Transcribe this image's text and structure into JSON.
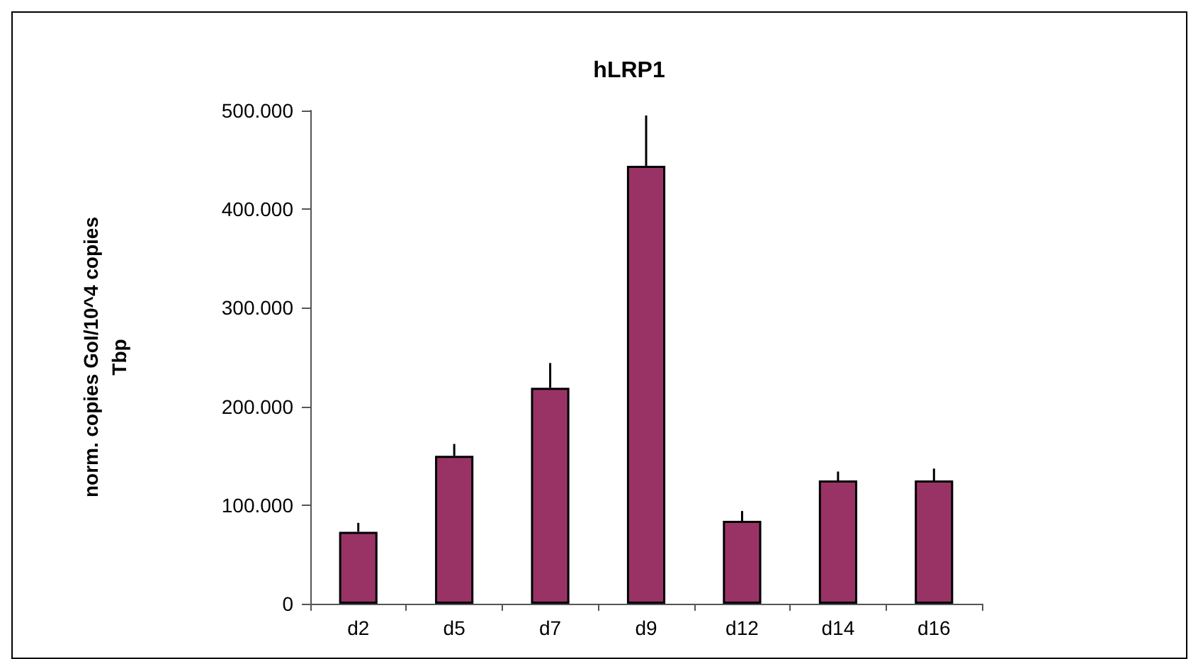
{
  "chart_data": {
    "type": "bar",
    "title": "hLRP1",
    "ylabel": "norm. copies GoI/10^4 copies\nTbp",
    "categories": [
      "d2",
      "d5",
      "d7",
      "d9",
      "d12",
      "d14",
      "d16"
    ],
    "values": [
      73000,
      150000,
      219000,
      444000,
      84000,
      125000,
      125000
    ],
    "errors": [
      [
        73000,
        82000
      ],
      [
        150000,
        162000
      ],
      [
        219000,
        244000
      ],
      [
        444000,
        495000
      ],
      [
        84000,
        94000
      ],
      [
        125000,
        134000
      ],
      [
        125000,
        137000
      ]
    ],
    "color": "#993366",
    "ylim": [
      0,
      500000
    ],
    "yticks": [
      {
        "value": 0,
        "label": "0"
      },
      {
        "value": 100000,
        "label": "100.000"
      },
      {
        "value": 200000,
        "label": "200.000"
      },
      {
        "value": 300000,
        "label": "300.000"
      },
      {
        "value": 400000,
        "label": "400.000"
      },
      {
        "value": 500000,
        "label": "500.000"
      }
    ],
    "grid": false
  }
}
